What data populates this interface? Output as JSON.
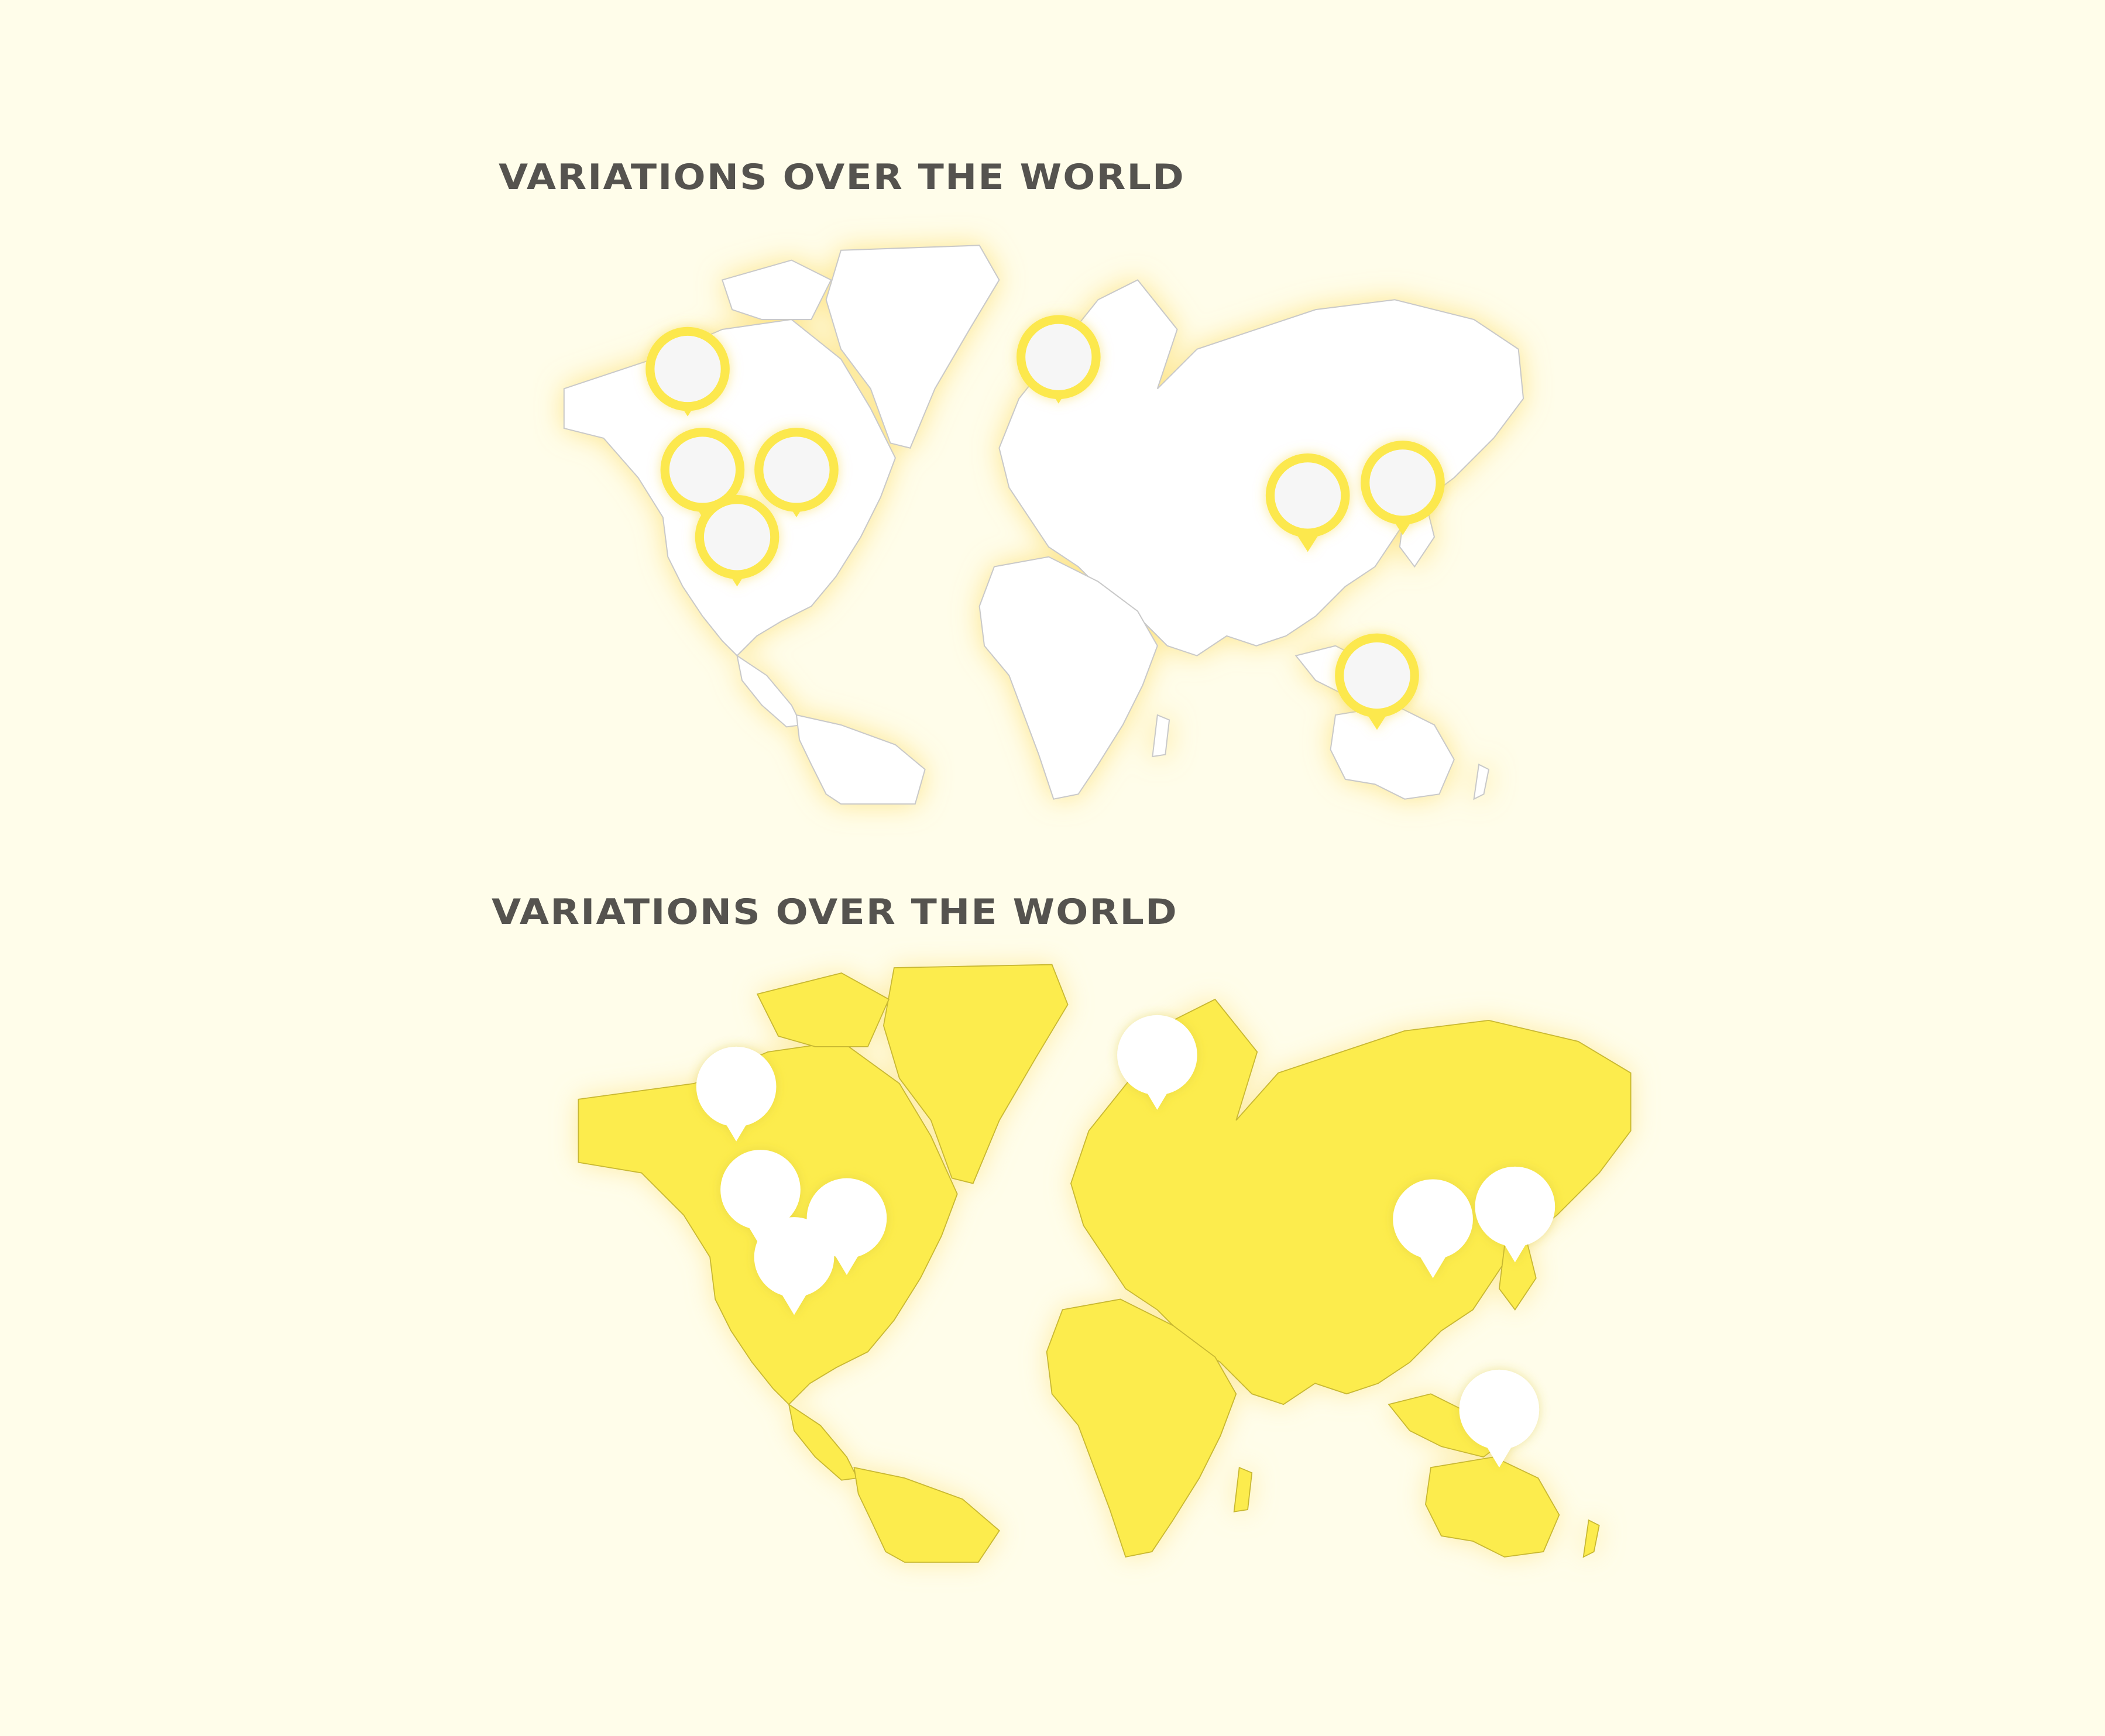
{
  "maps": [
    {
      "title": "VARIATIONS OVER THE WORLD",
      "style": "outline",
      "land_color": "#ffffff",
      "border_color": "#c9c9c9",
      "glow_color": "#fde79a",
      "marker_ring_color": "#fce84e",
      "marker_fill_color": "#f6f6f6",
      "markers": [
        {
          "name": "alaska-marker"
        },
        {
          "name": "west-canada-marker"
        },
        {
          "name": "east-canada-marker"
        },
        {
          "name": "usa-marker"
        },
        {
          "name": "scandinavia-marker"
        },
        {
          "name": "china-marker"
        },
        {
          "name": "korea-marker"
        },
        {
          "name": "australia-marker"
        }
      ]
    },
    {
      "title": "VARIATIONS OVER THE WORLD",
      "style": "filled",
      "land_color": "#fcec4e",
      "border_color": "#c8b830",
      "glow_color": "#fde79a",
      "marker_fill_color": "#ffffff",
      "markers": [
        {
          "name": "alaska-marker"
        },
        {
          "name": "west-canada-marker"
        },
        {
          "name": "east-canada-marker"
        },
        {
          "name": "usa-marker"
        },
        {
          "name": "scandinavia-marker"
        },
        {
          "name": "china-marker"
        },
        {
          "name": "korea-marker"
        },
        {
          "name": "australia-marker"
        }
      ]
    }
  ]
}
